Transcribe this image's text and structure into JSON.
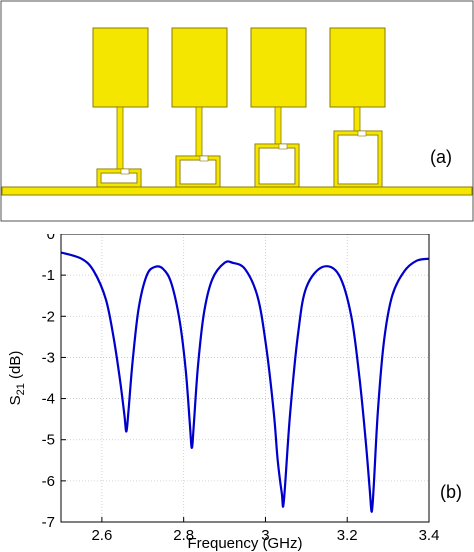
{
  "layout": {
    "panel_label": "(a)",
    "colors": {
      "metal": "#f5e600",
      "outline": "#8a7a00",
      "background": "#ffffff",
      "frame": "#555555"
    }
  },
  "chart_data": {
    "type": "line",
    "panel_label": "(b)",
    "xlabel": "Frequency (GHz)",
    "ylabel_main": "S",
    "ylabel_sub": "21",
    "ylabel_unit": " (dB)",
    "xlim": [
      2.5,
      3.4
    ],
    "ylim": [
      -7,
      0
    ],
    "x_ticks": [
      2.6,
      2.8,
      3.0,
      3.2,
      3.4
    ],
    "x_tick_labels": [
      "2.6",
      "2.8",
      "3",
      "3.2",
      "3.4"
    ],
    "y_ticks": [
      0,
      -1,
      -2,
      -3,
      -4,
      -5,
      -6,
      -7
    ],
    "y_tick_labels": [
      "0",
      "-1",
      "-2",
      "-3",
      "-4",
      "-5",
      "-6",
      "-7"
    ],
    "grid": true,
    "series": [
      {
        "color": "#0000cc",
        "x": [
          2.5,
          2.55,
          2.58,
          2.61,
          2.63,
          2.645,
          2.655,
          2.66,
          2.665,
          2.675,
          2.69,
          2.71,
          2.73,
          2.75,
          2.77,
          2.79,
          2.805,
          2.815,
          2.82,
          2.825,
          2.835,
          2.85,
          2.87,
          2.9,
          2.92,
          2.95,
          2.98,
          3.0,
          3.02,
          3.03,
          3.04,
          3.045,
          3.06,
          3.08,
          3.1,
          3.14,
          3.18,
          3.21,
          3.23,
          3.245,
          3.255,
          3.26,
          3.265,
          3.275,
          3.29,
          3.31,
          3.34,
          3.37,
          3.4
        ],
        "y": [
          -0.45,
          -0.6,
          -0.9,
          -1.6,
          -2.6,
          -3.6,
          -4.4,
          -4.8,
          -4.3,
          -3.1,
          -1.8,
          -1.0,
          -0.8,
          -0.85,
          -1.2,
          -2.1,
          -3.3,
          -4.6,
          -5.2,
          -4.6,
          -3.2,
          -1.9,
          -1.1,
          -0.7,
          -0.7,
          -0.85,
          -1.5,
          -2.6,
          -4.3,
          -5.5,
          -6.3,
          -6.5,
          -4.4,
          -2.4,
          -1.3,
          -0.8,
          -1.0,
          -2.0,
          -3.5,
          -5.0,
          -6.2,
          -6.75,
          -6.1,
          -4.3,
          -2.6,
          -1.5,
          -0.9,
          -0.65,
          -0.6
        ]
      }
    ]
  }
}
